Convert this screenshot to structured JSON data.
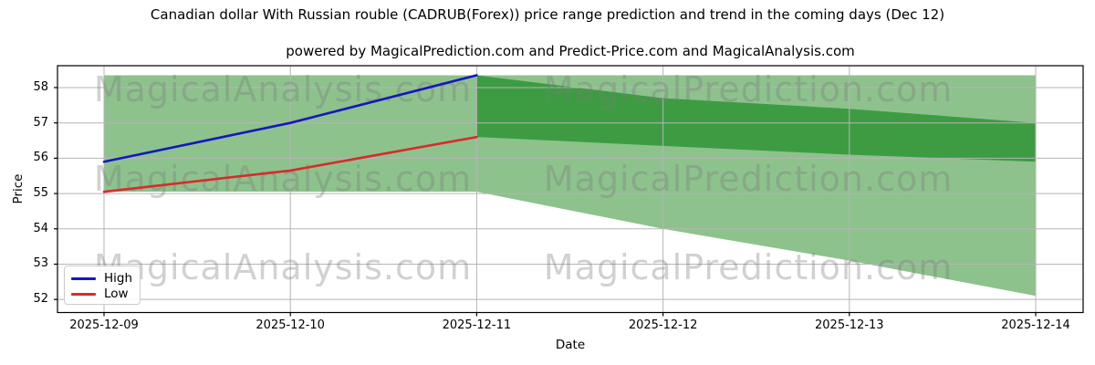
{
  "header": {
    "title": "Canadian dollar With Russian rouble (CADRUB(Forex)) price range prediction and trend in the coming days (Dec 12)",
    "subtitle": "powered by MagicalPrediction.com and Predict-Price.com and MagicalAnalysis.com"
  },
  "chart_data": {
    "type": "line",
    "x": [
      "2025-12-09",
      "2025-12-10",
      "2025-12-11",
      "2025-12-12",
      "2025-12-13",
      "2025-12-14"
    ],
    "series": [
      {
        "name": "High",
        "color": "#1717bd",
        "values": [
          55.9,
          57.0,
          58.35,
          null,
          null,
          null
        ]
      },
      {
        "name": "Low",
        "color": "#d92b2b",
        "values": [
          55.05,
          55.65,
          56.6,
          null,
          null,
          null
        ]
      }
    ],
    "bands": {
      "outer": {
        "label": "full-range-band",
        "color": "#8dc28d",
        "top": [
          58.35,
          58.35,
          58.35,
          58.35,
          58.35,
          58.35
        ],
        "bottom": [
          55.05,
          55.05,
          55.05,
          54.0,
          53.1,
          52.1
        ]
      },
      "inner": {
        "label": "forecast-band",
        "color": "#3d9c42",
        "x_start_index": 2,
        "top": [
          58.35,
          57.7,
          57.4,
          57.0
        ],
        "bottom": [
          56.6,
          56.35,
          56.1,
          55.9
        ]
      }
    },
    "xlabel": "Date",
    "ylabel": "Price",
    "yticks": [
      52,
      53,
      54,
      55,
      56,
      57,
      58
    ],
    "ylim": [
      51.63,
      58.62
    ],
    "grid": true,
    "gridline_color": "#b5b5b5",
    "frame_color": "#000000",
    "legend": {
      "position": "lower left",
      "entries": [
        {
          "label": "High",
          "color": "#1717bd"
        },
        {
          "label": "Low",
          "color": "#d92b2b"
        }
      ]
    },
    "watermarks": {
      "texts": [
        "MagicalAnalysis.com",
        "MagicalPrediction.com"
      ]
    }
  }
}
